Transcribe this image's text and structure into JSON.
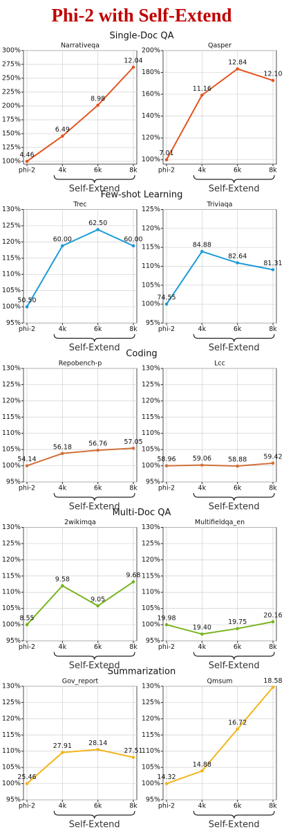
{
  "title": "Phi-2 with Self-Extend",
  "sections": [
    "Single-Doc QA",
    "Few-shot Learning",
    "Coding",
    "Multi-Doc QA",
    "Summarization"
  ],
  "chart_data": [
    {
      "type": "line",
      "title": "Narrativeqa",
      "categories": [
        "phi-2",
        "4k",
        "6k",
        "8k"
      ],
      "group_label": "Self-Extend",
      "color": "#e4541f",
      "values": [
        100,
        145.5,
        201.3,
        270.0
      ],
      "scores": [
        "4.46",
        "6.49",
        "8.98",
        "12.04"
      ],
      "ylim": [
        95,
        300
      ],
      "yticks": [
        {
          "value": 100,
          "label": "100%"
        },
        {
          "value": 125,
          "label": "125%"
        },
        {
          "value": 150,
          "label": "150%"
        },
        {
          "value": 175,
          "label": "175%"
        },
        {
          "value": 200,
          "label": "200%"
        },
        {
          "value": 225,
          "label": "225%"
        },
        {
          "value": 250,
          "label": "250%"
        },
        {
          "value": 275,
          "label": "275%"
        },
        {
          "value": 300,
          "label": "300%"
        }
      ],
      "grid": true
    },
    {
      "type": "line",
      "title": "Qasper",
      "categories": [
        "phi-2",
        "4k",
        "6k",
        "8k"
      ],
      "group_label": "Self-Extend",
      "color": "#e4541f",
      "values": [
        100,
        159.2,
        183.2,
        172.6
      ],
      "scores": [
        "7.01",
        "11.16",
        "12.84",
        "12.10"
      ],
      "ylim": [
        96,
        200
      ],
      "yticks": [
        {
          "value": 100,
          "label": "100%"
        },
        {
          "value": 120,
          "label": "120%"
        },
        {
          "value": 140,
          "label": "140%"
        },
        {
          "value": 160,
          "label": "160%"
        },
        {
          "value": 180,
          "label": "180%"
        },
        {
          "value": 200,
          "label": "200%"
        }
      ],
      "grid": true
    },
    {
      "type": "line",
      "title": "Trec",
      "categories": [
        "phi-2",
        "4k",
        "6k",
        "8k"
      ],
      "group_label": "Self-Extend",
      "color": "#1a9bd7",
      "values": [
        100,
        118.8,
        123.8,
        118.8
      ],
      "scores": [
        "50.50",
        "60.00",
        "62.50",
        "60.00"
      ],
      "ylim": [
        95,
        130
      ],
      "yticks": [
        {
          "value": 95,
          "label": "95%"
        },
        {
          "value": 100,
          "label": "100%"
        },
        {
          "value": 105,
          "label": "105%"
        },
        {
          "value": 110,
          "label": "110%"
        },
        {
          "value": 115,
          "label": "115%"
        },
        {
          "value": 120,
          "label": "120%"
        },
        {
          "value": 125,
          "label": "125%"
        },
        {
          "value": 130,
          "label": "130%"
        }
      ],
      "grid": true
    },
    {
      "type": "line",
      "title": "Triviaqa",
      "categories": [
        "phi-2",
        "4k",
        "6k",
        "8k"
      ],
      "group_label": "Self-Extend",
      "color": "#1a9bd7",
      "values": [
        100,
        113.9,
        110.9,
        109.1
      ],
      "scores": [
        "74.55",
        "84.88",
        "82.64",
        "81.31"
      ],
      "ylim": [
        95,
        125
      ],
      "yticks": [
        {
          "value": 95,
          "label": "95%"
        },
        {
          "value": 100,
          "label": "100%"
        },
        {
          "value": 105,
          "label": "105%"
        },
        {
          "value": 110,
          "label": "110%"
        },
        {
          "value": 115,
          "label": "115%"
        },
        {
          "value": 120,
          "label": "120%"
        },
        {
          "value": 125,
          "label": "125%"
        }
      ],
      "grid": true
    },
    {
      "type": "line",
      "title": "Repobench-p",
      "categories": [
        "phi-2",
        "4k",
        "6k",
        "8k"
      ],
      "group_label": "Self-Extend",
      "color": "#d0703a",
      "values": [
        100,
        103.8,
        104.8,
        105.4
      ],
      "scores": [
        "54.14",
        "56.18",
        "56.76",
        "57.05"
      ],
      "ylim": [
        95,
        130
      ],
      "yticks": [
        {
          "value": 95,
          "label": "95%"
        },
        {
          "value": 100,
          "label": "100%"
        },
        {
          "value": 105,
          "label": "105%"
        },
        {
          "value": 110,
          "label": "110%"
        },
        {
          "value": 115,
          "label": "115%"
        },
        {
          "value": 120,
          "label": "120%"
        },
        {
          "value": 125,
          "label": "125%"
        },
        {
          "value": 130,
          "label": "130%"
        }
      ],
      "grid": true
    },
    {
      "type": "line",
      "title": "Lcc",
      "categories": [
        "phi-2",
        "4k",
        "6k",
        "8k"
      ],
      "group_label": "Self-Extend",
      "color": "#d0703a",
      "values": [
        100,
        100.2,
        99.9,
        100.8
      ],
      "scores": [
        "58.96",
        "59.06",
        "58.88",
        "59.42"
      ],
      "ylim": [
        95,
        130
      ],
      "yticks": [
        {
          "value": 95,
          "label": "95%"
        },
        {
          "value": 100,
          "label": "100%"
        },
        {
          "value": 105,
          "label": "105%"
        },
        {
          "value": 110,
          "label": "110%"
        },
        {
          "value": 115,
          "label": "115%"
        },
        {
          "value": 120,
          "label": "120%"
        },
        {
          "value": 125,
          "label": "125%"
        },
        {
          "value": 130,
          "label": "130%"
        }
      ],
      "grid": true
    },
    {
      "type": "line",
      "title": "2wikimqa",
      "categories": [
        "phi-2",
        "4k",
        "6k",
        "8k"
      ],
      "group_label": "Self-Extend",
      "color": "#76b41c",
      "values": [
        100,
        112.0,
        105.8,
        113.2
      ],
      "scores": [
        "8.55",
        "9.58",
        "9.05",
        "9.68"
      ],
      "ylim": [
        95,
        130
      ],
      "yticks": [
        {
          "value": 95,
          "label": "95%"
        },
        {
          "value": 100,
          "label": "100%"
        },
        {
          "value": 105,
          "label": "105%"
        },
        {
          "value": 110,
          "label": "110%"
        },
        {
          "value": 115,
          "label": "115%"
        },
        {
          "value": 120,
          "label": "120%"
        },
        {
          "value": 125,
          "label": "125%"
        },
        {
          "value": 130,
          "label": "130%"
        }
      ],
      "grid": true
    },
    {
      "type": "line",
      "title": "Multifieldqa_en",
      "categories": [
        "phi-2",
        "4k",
        "6k",
        "8k"
      ],
      "group_label": "Self-Extend",
      "color": "#76b41c",
      "values": [
        100,
        97.1,
        98.8,
        100.9
      ],
      "scores": [
        "19.98",
        "19.40",
        "19.75",
        "20.16"
      ],
      "ylim": [
        95,
        130
      ],
      "yticks": [
        {
          "value": 95,
          "label": "95%"
        },
        {
          "value": 100,
          "label": "100%"
        },
        {
          "value": 105,
          "label": "105%"
        },
        {
          "value": 110,
          "label": "110%"
        },
        {
          "value": 115,
          "label": "115%"
        },
        {
          "value": 120,
          "label": "120%"
        },
        {
          "value": 125,
          "label": "125%"
        },
        {
          "value": 130,
          "label": "130%"
        }
      ],
      "grid": true
    },
    {
      "type": "line",
      "title": "Gov_report",
      "categories": [
        "phi-2",
        "4k",
        "6k",
        "8k"
      ],
      "group_label": "Self-Extend",
      "color": "#f2b51a",
      "values": [
        100,
        109.6,
        110.5,
        108.1
      ],
      "scores": [
        "25.46",
        "27.91",
        "28.14",
        "27.51"
      ],
      "ylim": [
        95,
        130
      ],
      "yticks": [
        {
          "value": 95,
          "label": "95%"
        },
        {
          "value": 100,
          "label": "100%"
        },
        {
          "value": 105,
          "label": "105%"
        },
        {
          "value": 110,
          "label": "110%"
        },
        {
          "value": 115,
          "label": "115%"
        },
        {
          "value": 120,
          "label": "120%"
        },
        {
          "value": 125,
          "label": "125%"
        },
        {
          "value": 130,
          "label": "130%"
        }
      ],
      "grid": true
    },
    {
      "type": "line",
      "title": "Qmsum",
      "categories": [
        "phi-2",
        "4k",
        "6k",
        "8k"
      ],
      "group_label": "Self-Extend",
      "color": "#f2b51a",
      "values": [
        100,
        103.9,
        116.8,
        129.7
      ],
      "scores": [
        "14.32",
        "14.88",
        "16.72",
        "18.58"
      ],
      "ylim": [
        95,
        130
      ],
      "yticks": [
        {
          "value": 95,
          "label": "95%"
        },
        {
          "value": 100,
          "label": "100%"
        },
        {
          "value": 105,
          "label": "105%"
        },
        {
          "value": 110,
          "label": "110%"
        },
        {
          "value": 115,
          "label": "115%"
        },
        {
          "value": 120,
          "label": "120%"
        },
        {
          "value": 125,
          "label": "125%"
        },
        {
          "value": 130,
          "label": "130%"
        }
      ],
      "grid": true
    }
  ]
}
